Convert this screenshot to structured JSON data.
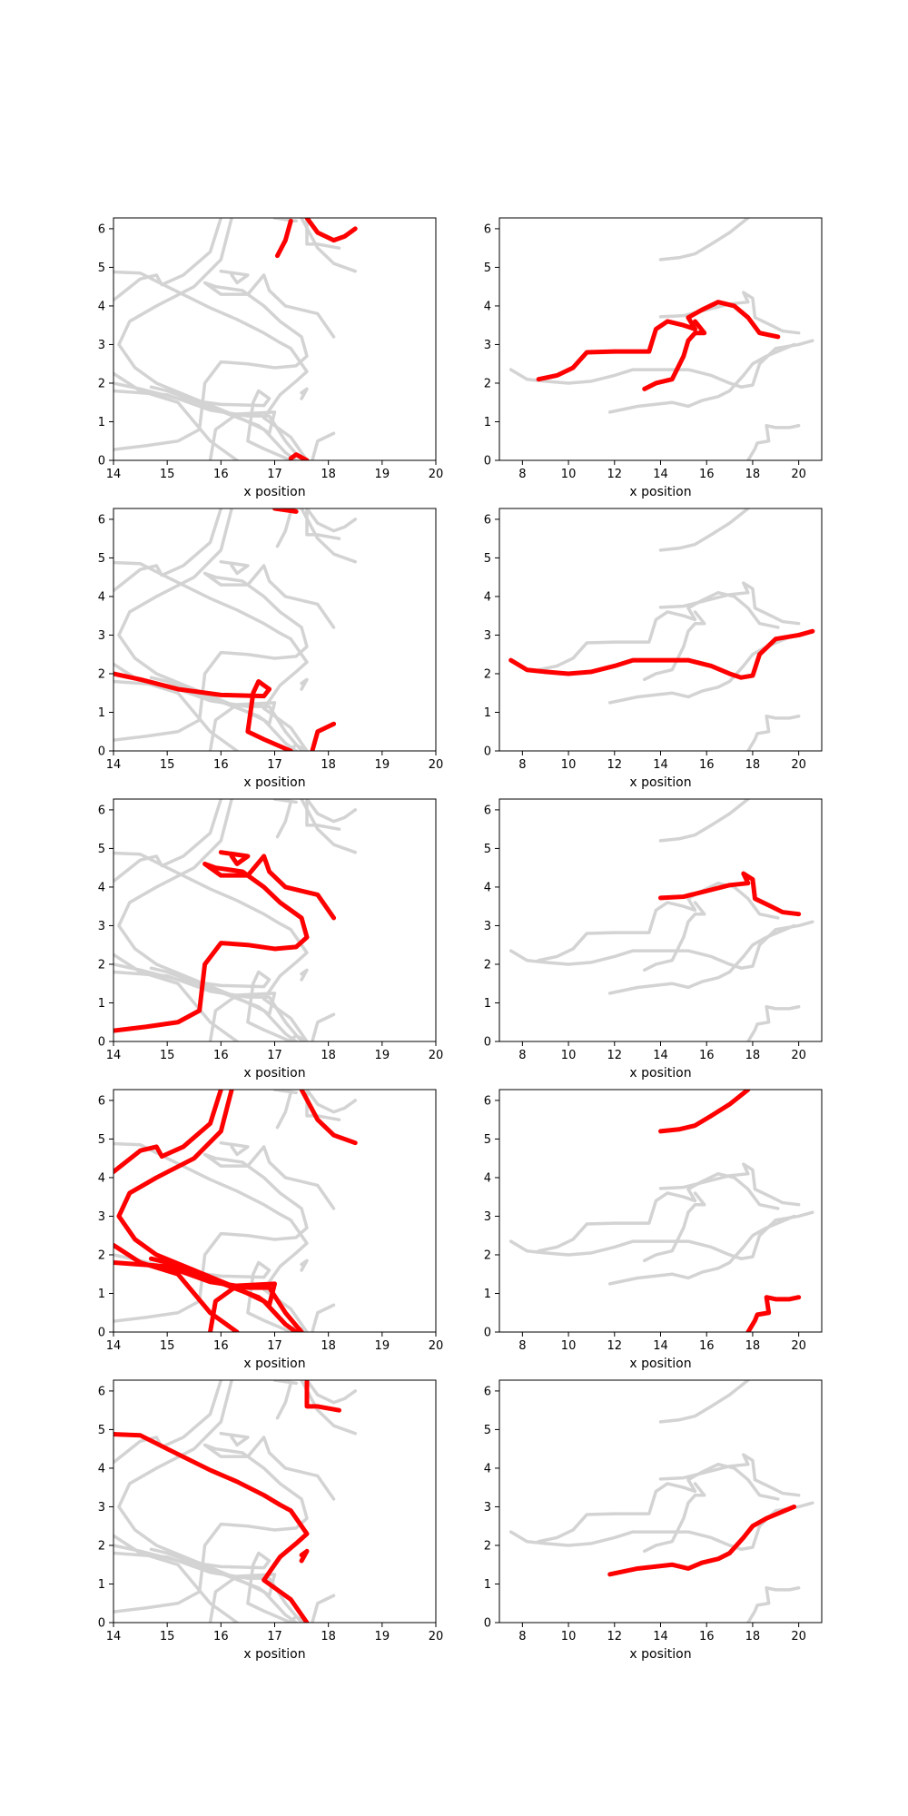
{
  "colors": {
    "background_trace": "#d3d3d3",
    "highlight_trace": "#ff0000",
    "axis": "#000000"
  },
  "chart_data": [
    {
      "type": "line",
      "xlabel": "x position",
      "ylabel": "",
      "xlim": [
        14,
        20
      ],
      "ylim": [
        0,
        6.28
      ],
      "grid": false,
      "xticks": [
        "14",
        "15",
        "16",
        "17",
        "18",
        "19",
        "20"
      ],
      "yticks": [
        "0",
        "1",
        "2",
        "3",
        "4",
        "5",
        "6"
      ],
      "series": [
        {
          "points": [
            [
              17.05,
              5.3
            ],
            [
              17.2,
              5.7
            ],
            [
              17.3,
              6.2
            ]
          ]
        },
        {
          "points": [
            [
              17.6,
              6.28
            ],
            [
              17.8,
              5.9
            ],
            [
              18.1,
              5.7
            ],
            [
              18.3,
              5.8
            ],
            [
              18.5,
              6.0
            ]
          ]
        },
        {
          "points": [
            [
              17.3,
              0.05
            ],
            [
              17.4,
              0.15
            ],
            [
              17.6,
              0.0
            ]
          ]
        }
      ]
    },
    {
      "type": "line",
      "xlabel": "x position",
      "ylabel": "",
      "xlim": [
        7,
        21
      ],
      "ylim": [
        0,
        6.28
      ],
      "grid": false,
      "xticks": [
        "8",
        "10",
        "12",
        "14",
        "16",
        "18",
        "20"
      ],
      "yticks": [
        "0",
        "1",
        "2",
        "3",
        "4",
        "5",
        "6"
      ],
      "series": [
        {
          "points": [
            [
              8.7,
              2.1
            ],
            [
              9.5,
              2.2
            ],
            [
              10.2,
              2.4
            ],
            [
              10.8,
              2.8
            ],
            [
              12.0,
              2.82
            ],
            [
              13.5,
              2.82
            ],
            [
              13.8,
              3.4
            ],
            [
              14.3,
              3.6
            ],
            [
              15.0,
              3.5
            ],
            [
              15.5,
              3.4
            ],
            [
              15.2,
              3.7
            ],
            [
              15.8,
              3.9
            ],
            [
              16.5,
              4.1
            ],
            [
              17.2,
              4.0
            ],
            [
              17.8,
              3.7
            ],
            [
              18.3,
              3.3
            ],
            [
              19.1,
              3.2
            ]
          ]
        },
        {
          "points": [
            [
              13.3,
              1.85
            ],
            [
              13.8,
              2.0
            ],
            [
              14.5,
              2.1
            ],
            [
              15.0,
              2.7
            ],
            [
              15.2,
              3.1
            ],
            [
              15.5,
              3.3
            ],
            [
              15.9,
              3.3
            ],
            [
              15.5,
              3.6
            ]
          ]
        }
      ]
    },
    {
      "type": "line",
      "xlabel": "x position",
      "ylabel": "",
      "xlim": [
        14,
        20
      ],
      "ylim": [
        0,
        6.28
      ],
      "grid": false,
      "xticks": [
        "14",
        "15",
        "16",
        "17",
        "18",
        "19",
        "20"
      ],
      "yticks": [
        "0",
        "1",
        "2",
        "3",
        "4",
        "5",
        "6"
      ],
      "series": [
        {
          "points": [
            [
              14.0,
              2.0
            ],
            [
              14.5,
              1.85
            ],
            [
              15.2,
              1.6
            ],
            [
              16.0,
              1.45
            ],
            [
              16.8,
              1.42
            ],
            [
              16.9,
              1.6
            ],
            [
              16.7,
              1.8
            ],
            [
              16.6,
              1.5
            ],
            [
              16.5,
              0.5
            ],
            [
              16.8,
              0.3
            ],
            [
              17.3,
              0.0
            ]
          ]
        },
        {
          "points": [
            [
              17.7,
              0.0
            ],
            [
              17.8,
              0.5
            ],
            [
              18.1,
              0.7
            ]
          ]
        },
        {
          "points": [
            [
              17.0,
              6.28
            ],
            [
              17.4,
              6.2
            ]
          ]
        }
      ]
    },
    {
      "type": "line",
      "xlabel": "x position",
      "ylabel": "",
      "xlim": [
        7,
        21
      ],
      "ylim": [
        0,
        6.28
      ],
      "grid": false,
      "xticks": [
        "8",
        "10",
        "12",
        "14",
        "16",
        "18",
        "20"
      ],
      "yticks": [
        "0",
        "1",
        "2",
        "3",
        "4",
        "5",
        "6"
      ],
      "series": [
        {
          "points": [
            [
              7.5,
              2.35
            ],
            [
              8.2,
              2.1
            ],
            [
              9.0,
              2.05
            ],
            [
              10.0,
              2.0
            ],
            [
              11.0,
              2.05
            ],
            [
              12.0,
              2.2
            ],
            [
              12.8,
              2.35
            ],
            [
              14.0,
              2.35
            ],
            [
              15.2,
              2.35
            ],
            [
              16.2,
              2.2
            ],
            [
              17.0,
              2.0
            ],
            [
              17.5,
              1.9
            ],
            [
              18.0,
              1.95
            ],
            [
              18.3,
              2.5
            ],
            [
              19.0,
              2.9
            ],
            [
              20.0,
              3.0
            ],
            [
              20.6,
              3.1
            ]
          ]
        }
      ]
    },
    {
      "type": "line",
      "xlabel": "x position",
      "ylabel": "",
      "xlim": [
        14,
        20
      ],
      "ylim": [
        0,
        6.28
      ],
      "grid": false,
      "xticks": [
        "14",
        "15",
        "16",
        "17",
        "18",
        "19",
        "20"
      ],
      "yticks": [
        "0",
        "1",
        "2",
        "3",
        "4",
        "5",
        "6"
      ],
      "series": [
        {
          "points": [
            [
              14.0,
              0.28
            ],
            [
              14.6,
              0.38
            ],
            [
              15.2,
              0.5
            ],
            [
              15.6,
              0.8
            ],
            [
              15.7,
              2.0
            ],
            [
              16.0,
              2.55
            ],
            [
              16.5,
              2.5
            ],
            [
              17.0,
              2.4
            ],
            [
              17.4,
              2.45
            ],
            [
              17.6,
              2.7
            ],
            [
              17.5,
              3.2
            ],
            [
              17.1,
              3.6
            ],
            [
              16.8,
              4.0
            ],
            [
              16.4,
              4.4
            ],
            [
              15.9,
              4.5
            ],
            [
              15.7,
              4.6
            ],
            [
              16.0,
              4.3
            ],
            [
              16.5,
              4.3
            ],
            [
              16.8,
              4.8
            ],
            [
              16.9,
              4.4
            ],
            [
              17.2,
              4.0
            ],
            [
              17.8,
              3.8
            ],
            [
              18.1,
              3.2
            ]
          ]
        },
        {
          "points": [
            [
              16.0,
              4.9
            ],
            [
              16.5,
              4.8
            ],
            [
              16.3,
              4.6
            ],
            [
              16.2,
              4.8
            ]
          ]
        }
      ]
    },
    {
      "type": "line",
      "xlabel": "x position",
      "ylabel": "",
      "xlim": [
        7,
        21
      ],
      "ylim": [
        0,
        6.28
      ],
      "grid": false,
      "xticks": [
        "8",
        "10",
        "12",
        "14",
        "16",
        "18",
        "20"
      ],
      "yticks": [
        "0",
        "1",
        "2",
        "3",
        "4",
        "5",
        "6"
      ],
      "series": [
        {
          "points": [
            [
              14.0,
              3.72
            ],
            [
              15.0,
              3.75
            ],
            [
              16.0,
              3.9
            ],
            [
              17.0,
              4.05
            ],
            [
              17.8,
              4.1
            ],
            [
              17.6,
              4.35
            ],
            [
              18.0,
              4.2
            ],
            [
              18.1,
              3.7
            ],
            [
              18.8,
              3.5
            ],
            [
              19.3,
              3.35
            ],
            [
              20.0,
              3.3
            ]
          ]
        }
      ]
    },
    {
      "type": "line",
      "xlabel": "x position",
      "ylabel": "",
      "xlim": [
        14,
        20
      ],
      "ylim": [
        0,
        6.28
      ],
      "grid": false,
      "xticks": [
        "14",
        "15",
        "16",
        "17",
        "18",
        "19",
        "20"
      ],
      "yticks": [
        "0",
        "1",
        "2",
        "3",
        "4",
        "5",
        "6"
      ],
      "series": [
        {
          "points": [
            [
              14.0,
              4.15
            ],
            [
              14.5,
              4.7
            ],
            [
              14.8,
              4.8
            ],
            [
              14.9,
              4.55
            ],
            [
              15.3,
              4.8
            ],
            [
              15.8,
              5.4
            ],
            [
              16.0,
              6.28
            ]
          ]
        },
        {
          "points": [
            [
              16.2,
              6.28
            ],
            [
              16.0,
              5.2
            ],
            [
              15.5,
              4.5
            ],
            [
              14.8,
              4.0
            ],
            [
              14.3,
              3.6
            ],
            [
              14.1,
              3.0
            ],
            [
              14.4,
              2.4
            ],
            [
              14.8,
              2.0
            ],
            [
              15.5,
              1.6
            ],
            [
              16.2,
              1.2
            ],
            [
              16.8,
              0.8
            ],
            [
              17.2,
              0.2
            ],
            [
              17.4,
              0.0
            ]
          ]
        },
        {
          "points": [
            [
              14.0,
              2.25
            ],
            [
              14.5,
              1.8
            ],
            [
              15.2,
              1.5
            ],
            [
              15.8,
              0.5
            ],
            [
              16.3,
              0.0
            ]
          ]
        },
        {
          "points": [
            [
              14.0,
              1.8
            ],
            [
              15.0,
              1.7
            ],
            [
              15.8,
              1.3
            ],
            [
              16.5,
              1.15
            ],
            [
              16.9,
              1.15
            ],
            [
              17.2,
              0.5
            ],
            [
              17.5,
              0.0
            ]
          ]
        },
        {
          "points": [
            [
              15.8,
              0.0
            ],
            [
              15.9,
              0.8
            ],
            [
              16.3,
              1.2
            ],
            [
              17.0,
              1.25
            ],
            [
              16.9,
              0.7
            ],
            [
              16.7,
              0.9
            ],
            [
              15.0,
              1.8
            ],
            [
              14.7,
              1.9
            ]
          ]
        },
        {
          "points": [
            [
              17.5,
              6.28
            ],
            [
              17.8,
              5.5
            ],
            [
              18.1,
              5.1
            ],
            [
              18.5,
              4.9
            ]
          ]
        }
      ]
    },
    {
      "type": "line",
      "xlabel": "x position",
      "ylabel": "",
      "xlim": [
        7,
        21
      ],
      "ylim": [
        0,
        6.28
      ],
      "grid": false,
      "xticks": [
        "8",
        "10",
        "12",
        "14",
        "16",
        "18",
        "20"
      ],
      "yticks": [
        "0",
        "1",
        "2",
        "3",
        "4",
        "5",
        "6"
      ],
      "series": [
        {
          "points": [
            [
              14.0,
              5.2
            ],
            [
              14.8,
              5.25
            ],
            [
              15.5,
              5.35
            ],
            [
              16.2,
              5.6
            ],
            [
              17.0,
              5.9
            ],
            [
              17.8,
              6.28
            ]
          ]
        },
        {
          "points": [
            [
              17.8,
              0.0
            ],
            [
              18.1,
              0.3
            ],
            [
              18.2,
              0.45
            ],
            [
              18.7,
              0.5
            ],
            [
              18.6,
              0.9
            ],
            [
              19.0,
              0.85
            ],
            [
              19.6,
              0.85
            ],
            [
              20.0,
              0.9
            ]
          ]
        }
      ]
    },
    {
      "type": "line",
      "xlabel": "x position",
      "ylabel": "",
      "xlim": [
        14,
        20
      ],
      "ylim": [
        0,
        6.28
      ],
      "grid": false,
      "xticks": [
        "14",
        "15",
        "16",
        "17",
        "18",
        "19",
        "20"
      ],
      "yticks": [
        "0",
        "1",
        "2",
        "3",
        "4",
        "5",
        "6"
      ],
      "series": [
        {
          "points": [
            [
              14.0,
              4.88
            ],
            [
              14.5,
              4.85
            ],
            [
              15.0,
              4.5
            ],
            [
              15.8,
              3.95
            ],
            [
              16.3,
              3.65
            ],
            [
              16.8,
              3.3
            ],
            [
              17.1,
              3.05
            ],
            [
              17.3,
              2.9
            ],
            [
              17.6,
              2.3
            ],
            [
              17.4,
              2.05
            ],
            [
              17.1,
              1.7
            ],
            [
              16.8,
              1.1
            ],
            [
              17.3,
              0.6
            ],
            [
              17.6,
              0.0
            ]
          ]
        },
        {
          "points": [
            [
              17.5,
              1.6
            ],
            [
              17.6,
              1.85
            ],
            [
              17.5,
              1.75
            ]
          ]
        },
        {
          "points": [
            [
              17.6,
              6.28
            ],
            [
              17.6,
              5.6
            ],
            [
              17.8,
              5.6
            ],
            [
              18.2,
              5.5
            ]
          ]
        }
      ]
    },
    {
      "type": "line",
      "xlabel": "x position",
      "ylabel": "",
      "xlim": [
        7,
        21
      ],
      "ylim": [
        0,
        6.28
      ],
      "grid": false,
      "xticks": [
        "8",
        "10",
        "12",
        "14",
        "16",
        "18",
        "20"
      ],
      "yticks": [
        "0",
        "1",
        "2",
        "3",
        "4",
        "5",
        "6"
      ],
      "series": [
        {
          "points": [
            [
              11.8,
              1.25
            ],
            [
              13.0,
              1.4
            ],
            [
              14.5,
              1.5
            ],
            [
              15.2,
              1.4
            ],
            [
              15.8,
              1.55
            ],
            [
              16.5,
              1.65
            ],
            [
              17.0,
              1.8
            ],
            [
              17.6,
              2.2
            ],
            [
              18.0,
              2.5
            ],
            [
              18.6,
              2.7
            ],
            [
              19.2,
              2.85
            ],
            [
              19.8,
              3.0
            ]
          ]
        }
      ]
    }
  ]
}
